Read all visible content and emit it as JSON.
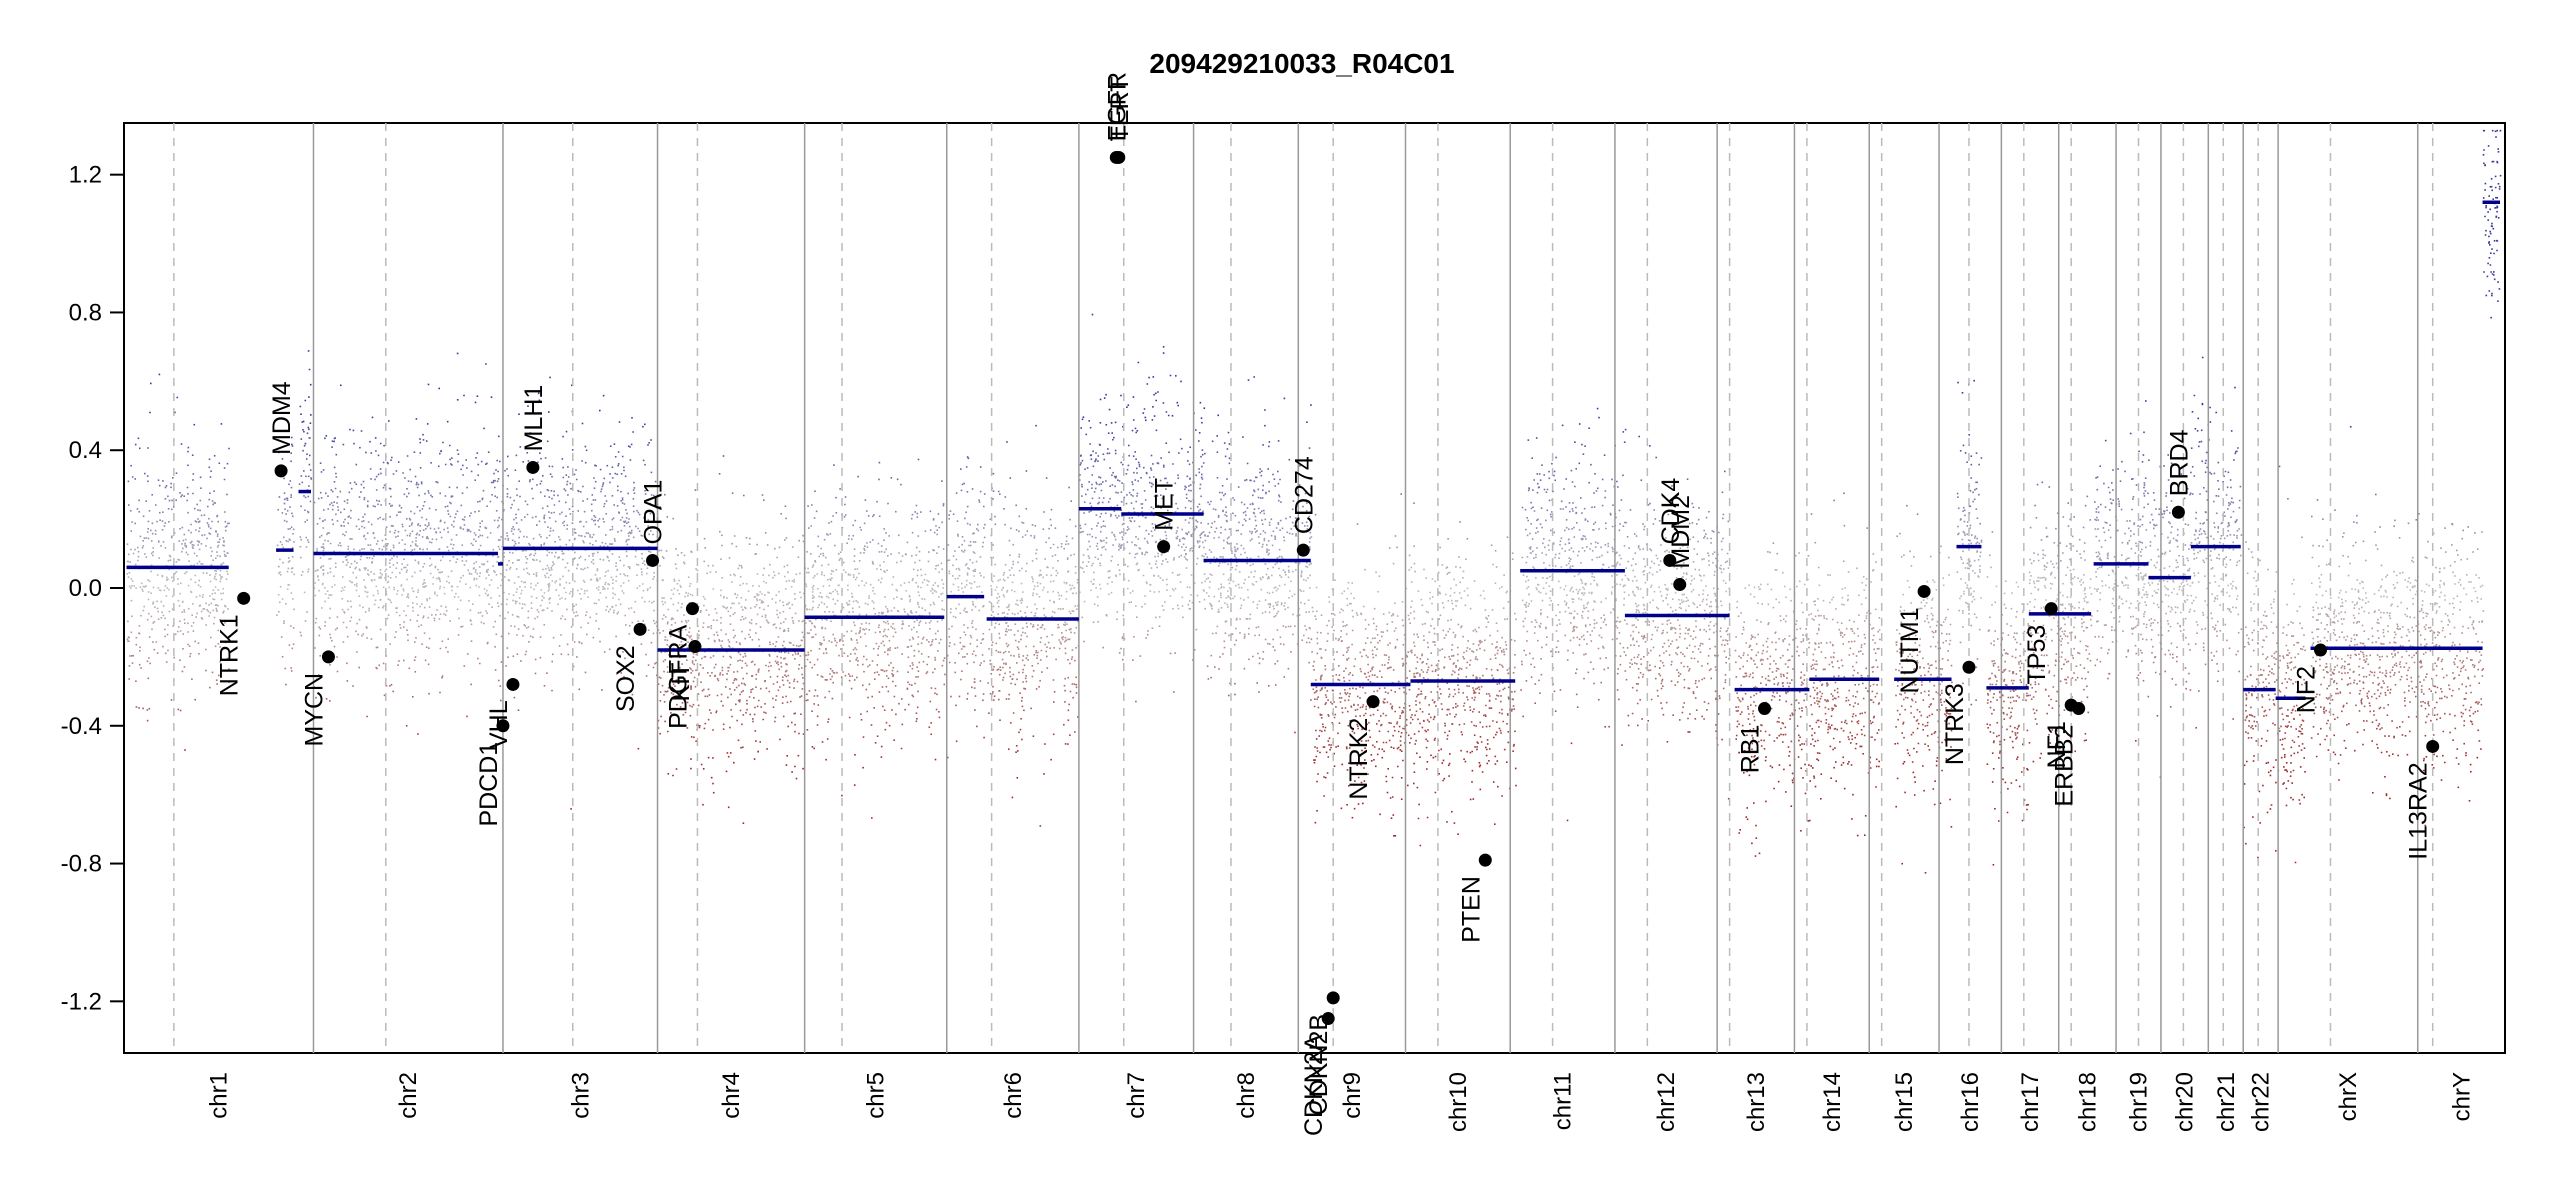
{
  "chart_data": {
    "type": "scatter",
    "title": "209429210033_R04C01",
    "xlabel": "",
    "ylabel": "",
    "ylim": [
      -1.35,
      1.35
    ],
    "yticks": [
      -1.2,
      -0.8,
      -0.4,
      0.0,
      0.4,
      0.8,
      1.2
    ],
    "ytick_labels": [
      "-1.2",
      "-0.8",
      "-0.4",
      "0.0",
      "0.4",
      "0.8",
      "1.2"
    ],
    "grid": false,
    "colors": {
      "gain": "#3a3a9c",
      "loss": "#9c2a2a",
      "neutral": "#bdbdbd",
      "segment": "#00008b",
      "gene": "#000000",
      "chr_border": "#999999",
      "centromere": "#bbbbbb"
    },
    "chromosomes": [
      {
        "name": "chr1",
        "start": 0.0,
        "end": 7.6,
        "centromere": 2.0
      },
      {
        "name": "chr2",
        "start": 7.6,
        "end": 15.2,
        "centromere": 10.5
      },
      {
        "name": "chr3",
        "start": 15.2,
        "end": 21.4,
        "centromere": 18.0
      },
      {
        "name": "chr4",
        "start": 21.4,
        "end": 27.3,
        "centromere": 23.0
      },
      {
        "name": "chr5",
        "start": 27.3,
        "end": 33.0,
        "centromere": 28.8
      },
      {
        "name": "chr6",
        "start": 33.0,
        "end": 38.3,
        "centromere": 34.8
      },
      {
        "name": "chr7",
        "start": 38.3,
        "end": 42.9,
        "centromere": 40.1
      },
      {
        "name": "chr8",
        "start": 42.9,
        "end": 47.1,
        "centromere": 44.4
      },
      {
        "name": "chr9",
        "start": 47.1,
        "end": 51.4,
        "centromere": 48.5
      },
      {
        "name": "chr10",
        "start": 51.4,
        "end": 55.6,
        "centromere": 52.7
      },
      {
        "name": "chr11",
        "start": 55.6,
        "end": 59.8,
        "centromere": 57.3
      },
      {
        "name": "chr12",
        "start": 59.8,
        "end": 63.9,
        "centromere": 61.1
      },
      {
        "name": "chr13",
        "start": 63.9,
        "end": 67.0,
        "centromere": 64.4
      },
      {
        "name": "chr14",
        "start": 67.0,
        "end": 70.0,
        "centromere": 67.5
      },
      {
        "name": "chr15",
        "start": 70.0,
        "end": 72.8,
        "centromere": 70.5
      },
      {
        "name": "chr16",
        "start": 72.8,
        "end": 75.3,
        "centromere": 74.0
      },
      {
        "name": "chr17",
        "start": 75.3,
        "end": 77.6,
        "centromere": 76.2
      },
      {
        "name": "chr18",
        "start": 77.6,
        "end": 79.9,
        "centromere": 78.1
      },
      {
        "name": "chr19",
        "start": 79.9,
        "end": 81.7,
        "centromere": 80.8
      },
      {
        "name": "chr20",
        "start": 81.7,
        "end": 83.6,
        "centromere": 82.6
      },
      {
        "name": "chr21",
        "start": 83.6,
        "end": 85.0,
        "centromere": 84.2
      },
      {
        "name": "chr22",
        "start": 85.0,
        "end": 86.4,
        "centromere": 85.6
      },
      {
        "name": "chrX",
        "start": 86.4,
        "end": 92.0,
        "centromere": 88.5
      },
      {
        "name": "chrY",
        "start": 92.0,
        "end": 95.5,
        "centromere": 92.6
      }
    ],
    "segments": [
      {
        "x0": 0.1,
        "x1": 4.2,
        "y": 0.06
      },
      {
        "x0": 6.1,
        "x1": 6.8,
        "y": 0.11
      },
      {
        "x0": 7.0,
        "x1": 7.5,
        "y": 0.28
      },
      {
        "x0": 7.6,
        "x1": 15.0,
        "y": 0.1
      },
      {
        "x0": 15.0,
        "x1": 15.2,
        "y": 0.07
      },
      {
        "x0": 15.2,
        "x1": 21.4,
        "y": 0.115
      },
      {
        "x0": 21.4,
        "x1": 27.3,
        "y": -0.18
      },
      {
        "x0": 27.3,
        "x1": 32.9,
        "y": -0.085
      },
      {
        "x0": 33.0,
        "x1": 34.5,
        "y": -0.025
      },
      {
        "x0": 34.6,
        "x1": 38.3,
        "y": -0.09
      },
      {
        "x0": 38.3,
        "x1": 40.0,
        "y": 0.23
      },
      {
        "x0": 40.0,
        "x1": 43.3,
        "y": 0.215
      },
      {
        "x0": 43.3,
        "x1": 47.6,
        "y": 0.08
      },
      {
        "x0": 47.6,
        "x1": 51.6,
        "y": -0.28
      },
      {
        "x0": 51.6,
        "x1": 55.8,
        "y": -0.27
      },
      {
        "x0": 56.0,
        "x1": 60.2,
        "y": 0.05
      },
      {
        "x0": 60.2,
        "x1": 64.4,
        "y": -0.08
      },
      {
        "x0": 64.6,
        "x1": 67.6,
        "y": -0.295
      },
      {
        "x0": 67.6,
        "x1": 70.4,
        "y": -0.265
      },
      {
        "x0": 71.0,
        "x1": 73.3,
        "y": -0.265
      },
      {
        "x0": 73.5,
        "x1": 74.5,
        "y": 0.12
      },
      {
        "x0": 74.7,
        "x1": 76.4,
        "y": -0.29
      },
      {
        "x0": 76.4,
        "x1": 78.9,
        "y": -0.075
      },
      {
        "x0": 79.0,
        "x1": 81.2,
        "y": 0.07
      },
      {
        "x0": 81.2,
        "x1": 82.9,
        "y": 0.03
      },
      {
        "x0": 82.9,
        "x1": 84.9,
        "y": 0.12
      },
      {
        "x0": 85.0,
        "x1": 86.3,
        "y": -0.295
      },
      {
        "x0": 86.3,
        "x1": 87.5,
        "y": -0.32
      },
      {
        "x0": 87.7,
        "x1": 94.6,
        "y": -0.175
      },
      {
        "x0": 94.6,
        "x1": 95.3,
        "y": 1.12
      }
    ],
    "genes": [
      {
        "name": "NTRK1",
        "x": 4.8,
        "y": -0.03
      },
      {
        "name": "MDM4",
        "x": 6.3,
        "y": 0.34
      },
      {
        "name": "MYCN",
        "x": 8.2,
        "y": -0.2
      },
      {
        "name": "PDCD1",
        "x": 15.2,
        "y": -0.4
      },
      {
        "name": "VHL",
        "x": 15.6,
        "y": -0.28
      },
      {
        "name": "MLH1",
        "x": 16.4,
        "y": 0.35
      },
      {
        "name": "SOX2",
        "x": 20.7,
        "y": -0.12
      },
      {
        "name": "OPA1",
        "x": 21.2,
        "y": 0.08
      },
      {
        "name": "PDGFRA",
        "x": 22.8,
        "y": -0.06
      },
      {
        "name": "KIT",
        "x": 22.9,
        "y": -0.17
      },
      {
        "name": "EGFR",
        "x": 39.8,
        "y": 1.25
      },
      {
        "name": "TERT",
        "x": 39.9,
        "y": 1.25
      },
      {
        "name": "MET",
        "x": 41.7,
        "y": 0.12
      },
      {
        "name": "CD274",
        "x": 47.3,
        "y": 0.11
      },
      {
        "name": "CDKN2A",
        "x": 48.3,
        "y": -1.25
      },
      {
        "name": "CDKN2B",
        "x": 48.5,
        "y": -1.19
      },
      {
        "name": "NTRK2",
        "x": 50.1,
        "y": -0.33
      },
      {
        "name": "PTEN",
        "x": 54.6,
        "y": -0.79
      },
      {
        "name": "CDK4",
        "x": 62.0,
        "y": 0.08
      },
      {
        "name": "MDM2",
        "x": 62.4,
        "y": 0.01
      },
      {
        "name": "RB1",
        "x": 65.8,
        "y": -0.35
      },
      {
        "name": "NUTM1",
        "x": 72.2,
        "y": -0.01
      },
      {
        "name": "NTRK3",
        "x": 74.0,
        "y": -0.23
      },
      {
        "name": "TP53",
        "x": 77.3,
        "y": -0.06
      },
      {
        "name": "NF1",
        "x": 78.1,
        "y": -0.34
      },
      {
        "name": "ERBB2",
        "x": 78.4,
        "y": -0.35
      },
      {
        "name": "BRD4",
        "x": 82.4,
        "y": 0.22
      },
      {
        "name": "NF2",
        "x": 88.1,
        "y": -0.18
      },
      {
        "name": "IL13RA2",
        "x": 92.6,
        "y": -0.46
      }
    ]
  }
}
